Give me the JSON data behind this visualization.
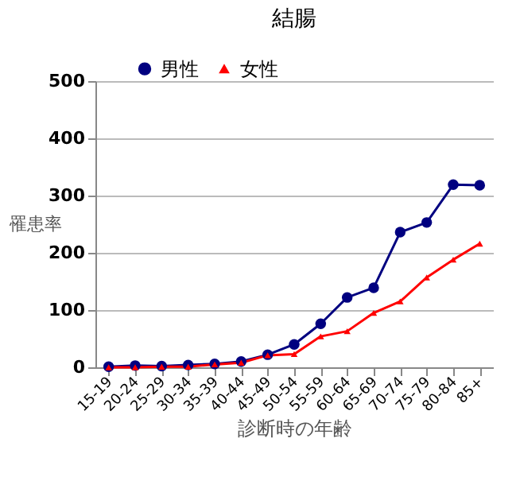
{
  "chart_data": {
    "type": "line",
    "title": "結腸",
    "xlabel": "診断時の年齢",
    "ylabel": "罹患率",
    "categories": [
      "15-19",
      "20-24",
      "25-29",
      "30-34",
      "35-39",
      "40-44",
      "45-49",
      "50-54",
      "55-59",
      "60-64",
      "65-69",
      "70-74",
      "75-79",
      "80-84",
      "85+"
    ],
    "series": [
      {
        "name": "男性",
        "color": "#000080",
        "marker": "circle",
        "values": [
          1,
          3,
          2,
          4,
          6,
          10,
          22,
          40,
          76,
          122,
          139,
          236,
          253,
          319,
          318
        ]
      },
      {
        "name": "女性",
        "color": "#ff0000",
        "marker": "triangle",
        "values": [
          0,
          0,
          1,
          1,
          5,
          8,
          21,
          23,
          54,
          63,
          95,
          115,
          157,
          188,
          216
        ]
      }
    ],
    "ylim": [
      0,
      500
    ],
    "yticks": [
      0,
      100,
      200,
      300,
      400,
      500
    ],
    "grid": "y",
    "legend": "top left"
  }
}
